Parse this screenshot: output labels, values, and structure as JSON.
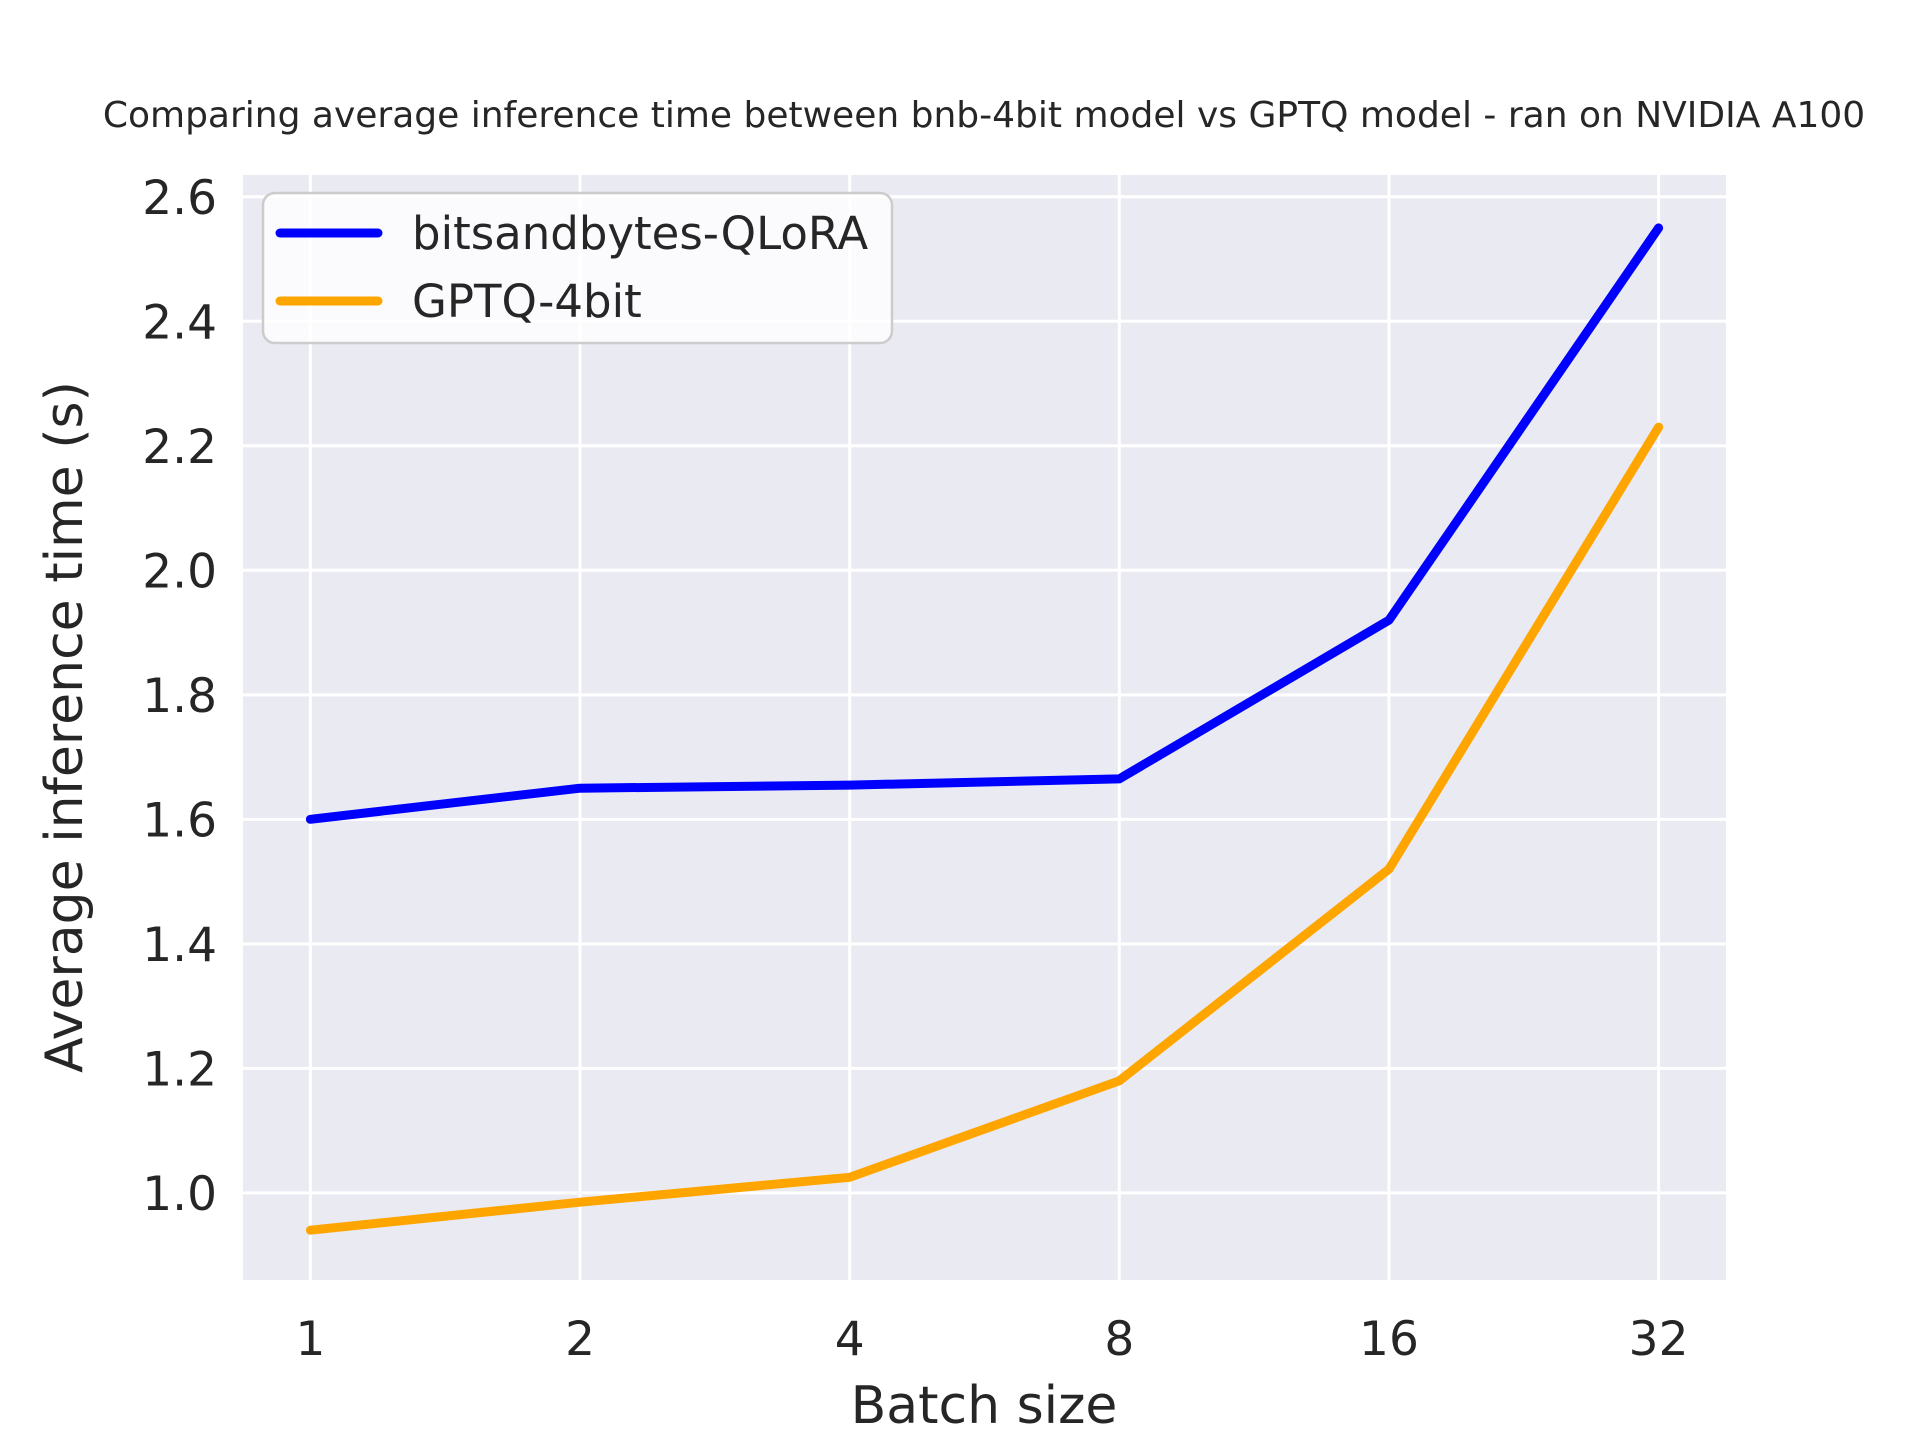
{
  "chart_data": {
    "type": "line",
    "title": "Comparing average inference time between bnb-4bit model vs GPTQ model - ran on NVIDIA A100",
    "xlabel": "Batch size",
    "ylabel": "Average inference time (s)",
    "x": [
      1,
      2,
      4,
      8,
      16,
      32
    ],
    "x_scale": "log2",
    "x_tick_labels": [
      "1",
      "2",
      "4",
      "8",
      "16",
      "32"
    ],
    "y_ticks": [
      1.0,
      1.2,
      1.4,
      1.6,
      1.8,
      2.0,
      2.2,
      2.4,
      2.6
    ],
    "y_tick_labels": [
      "1.0",
      "1.2",
      "1.4",
      "1.6",
      "1.8",
      "2.0",
      "2.2",
      "2.4",
      "2.6"
    ],
    "ylim": [
      0.86,
      2.635
    ],
    "grid": true,
    "legend_position": "upper left",
    "series": [
      {
        "name": "bitsandbytes-QLoRA",
        "color": "#0000ff",
        "values": [
          1.6,
          1.65,
          1.655,
          1.665,
          1.92,
          2.55
        ]
      },
      {
        "name": "GPTQ-4bit",
        "color": "#ffa500",
        "values": [
          0.94,
          0.985,
          1.025,
          1.18,
          1.52,
          2.23
        ]
      }
    ],
    "colors": {
      "plot_background": "#eaeaf2",
      "grid": "#ffffff",
      "text": "#262626",
      "legend_face": "#ffffff",
      "legend_edge": "#cccccc"
    }
  }
}
